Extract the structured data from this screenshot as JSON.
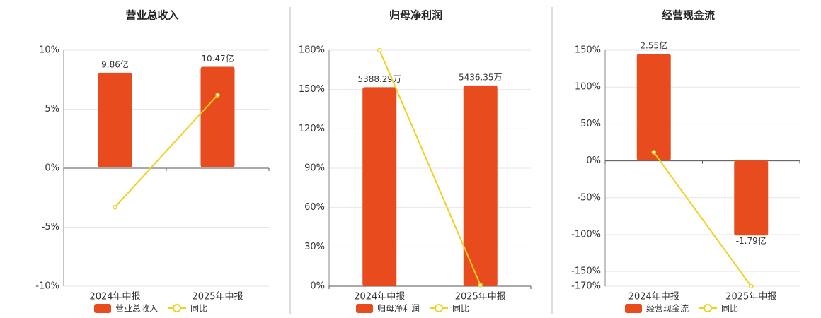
{
  "chart_data": [
    {
      "type": "bar",
      "title": "营业总收入",
      "categories": [
        "2024年中报",
        "2025年中报"
      ],
      "series": [
        {
          "name": "营业总收入",
          "color": "#e84c1e",
          "axis": "y2",
          "values": [
            9.86,
            10.47
          ],
          "value_labels": [
            "9.86亿",
            "10.47亿"
          ]
        },
        {
          "name": "同比",
          "type": "line",
          "color": "#f0d020",
          "values": [
            -3.3,
            6.2
          ]
        }
      ],
      "ylim": [
        -10,
        10
      ],
      "yticks": [
        {
          "value": 10,
          "label": "10%"
        },
        {
          "value": 5,
          "label": "5%"
        },
        {
          "value": 0,
          "label": "0%"
        },
        {
          "value": -5,
          "label": "-5%"
        },
        {
          "value": -10,
          "label": "-10%"
        }
      ],
      "y2lim": [
        -12.35,
        12.2
      ],
      "grid": true
    },
    {
      "type": "bar",
      "title": "归母净利润",
      "categories": [
        "2024年中报",
        "2025年中报"
      ],
      "series": [
        {
          "name": "归母净利润",
          "color": "#e84c1e",
          "axis": "y2",
          "values": [
            5388.29,
            5436.35
          ],
          "value_labels": [
            "5388.29万",
            "5436.35万"
          ]
        },
        {
          "name": "同比",
          "type": "line",
          "color": "#f0d020",
          "values": [
            180,
            0.9
          ]
        }
      ],
      "ylim": [
        0,
        180
      ],
      "yticks": [
        {
          "value": 180,
          "label": "180%"
        },
        {
          "value": 150,
          "label": "150%"
        },
        {
          "value": 120,
          "label": "120%"
        },
        {
          "value": 90,
          "label": "90%"
        },
        {
          "value": 60,
          "label": "60%"
        },
        {
          "value": 30,
          "label": "30%"
        },
        {
          "value": 0,
          "label": "0%"
        }
      ],
      "y2lim": [
        0,
        6390
      ],
      "grid": true
    },
    {
      "type": "bar",
      "title": "经营现金流",
      "categories": [
        "2024年中报",
        "2025年中报"
      ],
      "series": [
        {
          "name": "经营现金流",
          "color": "#e84c1e",
          "axis": "y2",
          "values": [
            2.55,
            -1.79
          ],
          "value_labels": [
            "2.55亿",
            "-1.79亿"
          ]
        },
        {
          "name": "同比",
          "type": "line",
          "color": "#f0d020",
          "values": [
            11.5,
            -170
          ]
        }
      ],
      "ylim": [
        -170,
        150
      ],
      "yticks": [
        {
          "value": 150,
          "label": "150%"
        },
        {
          "value": 100,
          "label": "100%"
        },
        {
          "value": 50,
          "label": "50%"
        },
        {
          "value": 0,
          "label": "0%"
        },
        {
          "value": -50,
          "label": "-50%"
        },
        {
          "value": -100,
          "label": "-100%"
        },
        {
          "value": -150,
          "label": "-150%"
        },
        {
          "value": -170,
          "label": "-170%"
        }
      ],
      "y2lim": [
        -3.0,
        2.635
      ],
      "grid": true
    }
  ]
}
